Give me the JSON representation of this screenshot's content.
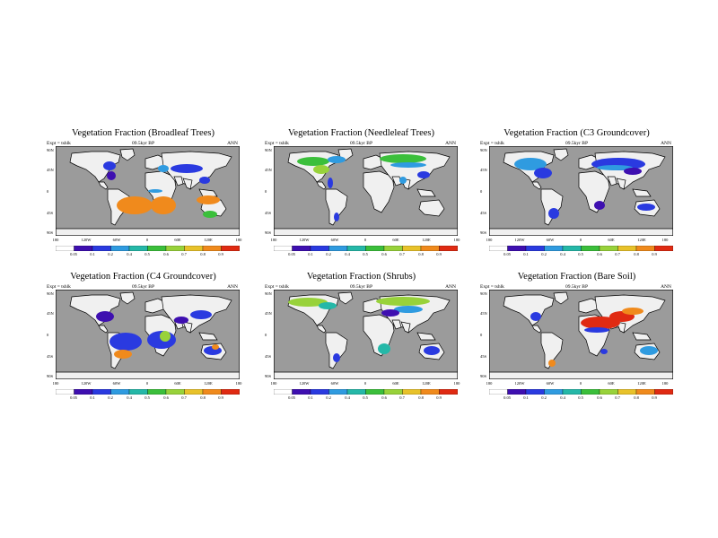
{
  "colors": {
    "ocean": "#9b9b9b",
    "land": "#f0f0f0",
    "coast": "#000000",
    "scale": [
      "#ffffff",
      "#3e0fb0",
      "#2a3ae0",
      "#2f9be0",
      "#25b8a8",
      "#3bbf3b",
      "#98d23a",
      "#e8c22a",
      "#f08a1c",
      "#e02a12"
    ]
  },
  "latitude_labels": [
    "90N",
    "45N",
    "0",
    "45S",
    "90S"
  ],
  "longitude_labels": [
    "180",
    "120W",
    "60W",
    "0",
    "60E",
    "120E",
    "180"
  ],
  "colorbar_labels": [
    "0.05",
    "0.1",
    "0.2",
    "0.4",
    "0.5",
    "0.6",
    "0.7",
    "0.8",
    "0.9"
  ],
  "panels": [
    {
      "title": "Vegetation Fraction (Broadleaf Trees)",
      "expt": "Expt = tshlk",
      "period": "09.5kyr BP",
      "season": "ANN",
      "regions": [
        {
          "cx": 60,
          "cy": 22,
          "rx": 7,
          "ry": 5,
          "level": 2
        },
        {
          "cx": 62,
          "cy": 33,
          "rx": 5,
          "ry": 5,
          "level": 1
        },
        {
          "cx": 120,
          "cy": 25,
          "rx": 6,
          "ry": 4,
          "level": 3
        },
        {
          "cx": 146,
          "cy": 25,
          "rx": 18,
          "ry": 5,
          "level": 2
        },
        {
          "cx": 166,
          "cy": 38,
          "rx": 6,
          "ry": 4,
          "level": 2
        },
        {
          "cx": 88,
          "cy": 66,
          "rx": 20,
          "ry": 10,
          "level": 8
        },
        {
          "cx": 120,
          "cy": 66,
          "rx": 14,
          "ry": 10,
          "level": 8
        },
        {
          "cx": 170,
          "cy": 60,
          "rx": 13,
          "ry": 5,
          "level": 8
        },
        {
          "cx": 172,
          "cy": 76,
          "rx": 8,
          "ry": 4,
          "level": 5
        },
        {
          "cx": 111,
          "cy": 50,
          "rx": 8,
          "ry": 2,
          "level": 3
        }
      ]
    },
    {
      "title": "Vegetation Fraction (Needleleaf Trees)",
      "expt": "Expt = tshlk",
      "period": "09.5kyr BP",
      "season": "ANN",
      "regions": [
        {
          "cx": 44,
          "cy": 17,
          "rx": 18,
          "ry": 5,
          "level": 5
        },
        {
          "cx": 70,
          "cy": 15,
          "rx": 10,
          "ry": 4,
          "level": 3
        },
        {
          "cx": 53,
          "cy": 26,
          "rx": 9,
          "ry": 5,
          "level": 6
        },
        {
          "cx": 144,
          "cy": 14,
          "rx": 26,
          "ry": 5,
          "level": 5
        },
        {
          "cx": 150,
          "cy": 21,
          "rx": 20,
          "ry": 3,
          "level": 3
        },
        {
          "cx": 167,
          "cy": 32,
          "rx": 7,
          "ry": 4,
          "level": 2
        },
        {
          "cx": 63,
          "cy": 41,
          "rx": 3,
          "ry": 6,
          "level": 2
        },
        {
          "cx": 70,
          "cy": 79,
          "rx": 3,
          "ry": 5,
          "level": 2
        },
        {
          "cx": 144,
          "cy": 38,
          "rx": 4,
          "ry": 4,
          "level": 3
        }
      ]
    },
    {
      "title": "Vegetation Fraction (C3 Groundcover)",
      "expt": "Expt = tshlk",
      "period": "09.5kyr BP",
      "season": "ANN",
      "regions": [
        {
          "cx": 46,
          "cy": 20,
          "rx": 18,
          "ry": 7,
          "level": 3
        },
        {
          "cx": 60,
          "cy": 30,
          "rx": 10,
          "ry": 6,
          "level": 2
        },
        {
          "cx": 144,
          "cy": 20,
          "rx": 30,
          "ry": 7,
          "level": 2
        },
        {
          "cx": 140,
          "cy": 24,
          "rx": 20,
          "ry": 3,
          "level": 3
        },
        {
          "cx": 160,
          "cy": 28,
          "rx": 10,
          "ry": 4,
          "level": 1
        },
        {
          "cx": 123,
          "cy": 66,
          "rx": 6,
          "ry": 5,
          "level": 1
        },
        {
          "cx": 72,
          "cy": 75,
          "rx": 6,
          "ry": 6,
          "level": 2
        },
        {
          "cx": 175,
          "cy": 68,
          "rx": 10,
          "ry": 4,
          "level": 2
        }
      ]
    },
    {
      "title": "Vegetation Fraction (C4 Groundcover)",
      "expt": "Expt = tshlk",
      "period": "09.5kyr BP",
      "season": "ANN",
      "regions": [
        {
          "cx": 55,
          "cy": 30,
          "rx": 10,
          "ry": 6,
          "level": 1
        },
        {
          "cx": 78,
          "cy": 58,
          "rx": 18,
          "ry": 10,
          "level": 2
        },
        {
          "cx": 75,
          "cy": 72,
          "rx": 10,
          "ry": 5,
          "level": 8
        },
        {
          "cx": 118,
          "cy": 56,
          "rx": 16,
          "ry": 10,
          "level": 2
        },
        {
          "cx": 122,
          "cy": 52,
          "rx": 6,
          "ry": 6,
          "level": 6
        },
        {
          "cx": 162,
          "cy": 28,
          "rx": 12,
          "ry": 5,
          "level": 2
        },
        {
          "cx": 140,
          "cy": 34,
          "rx": 8,
          "ry": 4,
          "level": 1
        },
        {
          "cx": 175,
          "cy": 68,
          "rx": 10,
          "ry": 5,
          "level": 2
        },
        {
          "cx": 178,
          "cy": 64,
          "rx": 4,
          "ry": 3,
          "level": 8
        }
      ]
    },
    {
      "title": "Vegetation Fraction (Shrubs)",
      "expt": "Expt = tshlk",
      "period": "09.5kyr BP",
      "season": "ANN",
      "regions": [
        {
          "cx": 38,
          "cy": 14,
          "rx": 22,
          "ry": 5,
          "level": 6
        },
        {
          "cx": 60,
          "cy": 18,
          "rx": 10,
          "ry": 4,
          "level": 4
        },
        {
          "cx": 144,
          "cy": 13,
          "rx": 30,
          "ry": 5,
          "level": 6
        },
        {
          "cx": 150,
          "cy": 22,
          "rx": 16,
          "ry": 4,
          "level": 3
        },
        {
          "cx": 130,
          "cy": 26,
          "rx": 10,
          "ry": 4,
          "level": 1
        },
        {
          "cx": 123,
          "cy": 66,
          "rx": 7,
          "ry": 6,
          "level": 4
        },
        {
          "cx": 176,
          "cy": 68,
          "rx": 9,
          "ry": 5,
          "level": 2
        },
        {
          "cx": 70,
          "cy": 76,
          "rx": 4,
          "ry": 5,
          "level": 2
        }
      ]
    },
    {
      "title": "Vegetation Fraction (Bare Soil)",
      "expt": "Expt = tshlk",
      "period": "09.5kyr BP",
      "season": "ANN",
      "regions": [
        {
          "cx": 124,
          "cy": 37,
          "rx": 22,
          "ry": 7,
          "level": 9
        },
        {
          "cx": 148,
          "cy": 30,
          "rx": 14,
          "ry": 6,
          "level": 9
        },
        {
          "cx": 160,
          "cy": 24,
          "rx": 12,
          "ry": 4,
          "level": 8
        },
        {
          "cx": 120,
          "cy": 45,
          "rx": 14,
          "ry": 3,
          "level": 2
        },
        {
          "cx": 52,
          "cy": 30,
          "rx": 6,
          "ry": 5,
          "level": 2
        },
        {
          "cx": 178,
          "cy": 68,
          "rx": 10,
          "ry": 5,
          "level": 3
        },
        {
          "cx": 70,
          "cy": 82,
          "rx": 4,
          "ry": 4,
          "level": 8
        },
        {
          "cx": 128,
          "cy": 69,
          "rx": 4,
          "ry": 3,
          "level": 2
        }
      ]
    }
  ]
}
